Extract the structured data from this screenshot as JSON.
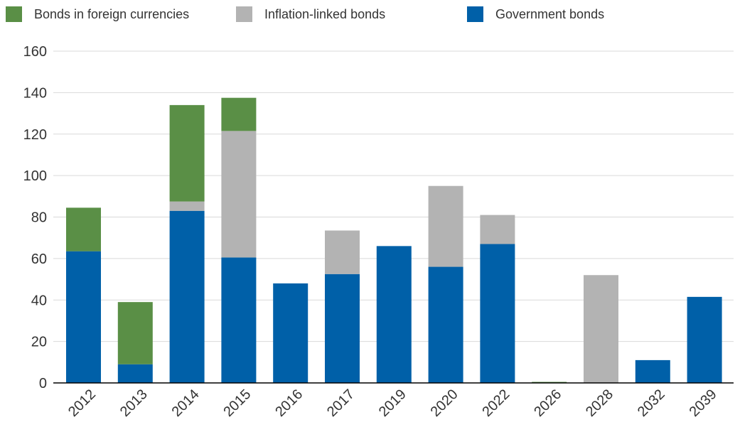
{
  "chart_data": {
    "type": "bar",
    "stacked": true,
    "categories": [
      "2012",
      "2013",
      "2014",
      "2015",
      "2016",
      "2017",
      "2019",
      "2020",
      "2022",
      "2026",
      "2028",
      "2032",
      "2039"
    ],
    "series": [
      {
        "name": "Government bonds",
        "color": "#0060a8",
        "values": [
          63.5,
          9,
          83,
          60.5,
          48,
          52.5,
          66,
          56,
          67,
          0,
          0,
          11,
          41.5
        ]
      },
      {
        "name": "Inflation-linked bonds",
        "color": "#b3b3b3",
        "values": [
          0,
          0,
          4.5,
          61,
          0,
          21,
          0,
          39,
          14,
          0,
          52,
          0,
          0
        ]
      },
      {
        "name": "Bonds in foreign currencies",
        "color": "#5a8f46",
        "values": [
          21,
          30,
          46.5,
          16,
          0,
          0,
          0,
          0,
          0,
          0.5,
          0,
          0,
          0
        ]
      }
    ],
    "legend_order": [
      "Bonds in foreign currencies",
      "Inflation-linked bonds",
      "Government bonds"
    ],
    "legend_position": "top",
    "ylim": [
      0,
      160
    ],
    "yticks": [
      0,
      20,
      40,
      60,
      80,
      100,
      120,
      140,
      160
    ],
    "grid": true
  }
}
